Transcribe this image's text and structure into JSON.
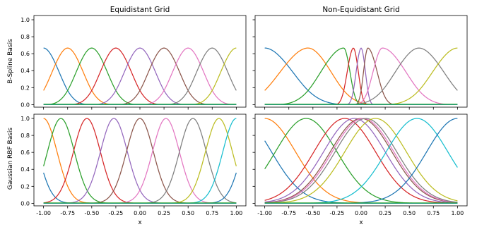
{
  "chart_data": [
    {
      "type": "line",
      "title": "Equidistant Grid",
      "xlabel": "",
      "ylabel": "B-Spline Basis",
      "xlim": [
        -1.1,
        1.1
      ],
      "ylim": [
        -0.03,
        1.05
      ],
      "xticks": [
        -1.0,
        -0.75,
        -0.5,
        -0.25,
        0.0,
        0.25,
        0.5,
        0.75,
        1.0
      ],
      "yticks": [
        "0.0",
        "0.2",
        "0.4",
        "0.6",
        "0.8",
        "1.0"
      ],
      "basis": "bspline",
      "centers": [
        -1.0,
        -0.75,
        -0.5,
        -0.25,
        0.0,
        0.25,
        0.5,
        0.75,
        1.0
      ]
    },
    {
      "type": "line",
      "title": "Non-Equidistant Grid",
      "xlabel": "",
      "ylabel": "",
      "xlim": [
        -1.1,
        1.1
      ],
      "ylim": [
        -0.03,
        1.05
      ],
      "xticks": [
        -1.0,
        -0.75,
        -0.5,
        -0.25,
        0.0,
        0.25,
        0.5,
        0.75,
        1.0
      ],
      "yticks": [
        "",
        "",
        "",
        "",
        "",
        ""
      ],
      "basis": "bspline",
      "centers": [
        -1.0,
        -0.55,
        -0.18,
        -0.08,
        0.0,
        0.07,
        0.22,
        0.6,
        1.0
      ]
    },
    {
      "type": "line",
      "title": "",
      "xlabel": "x",
      "ylabel": "Gaussian RBF Basis",
      "xlim": [
        -1.1,
        1.1
      ],
      "ylim": [
        -0.03,
        1.05
      ],
      "xticks": [
        "-1.00",
        "-0.75",
        "-0.50",
        "-0.25",
        "0.00",
        "0.25",
        "0.50",
        "0.75",
        "1.00"
      ],
      "yticks": [
        "0.0",
        "0.2",
        "0.4",
        "0.6",
        "0.8",
        "1.0"
      ],
      "basis": "gaussian",
      "centers": [
        -1.2,
        -1.0,
        -0.82,
        -0.55,
        -0.27,
        0.0,
        0.27,
        0.55,
        0.82,
        1.0,
        1.2
      ],
      "width": 0.14
    },
    {
      "type": "line",
      "title": "",
      "xlabel": "x",
      "ylabel": "",
      "xlim": [
        -1.1,
        1.1
      ],
      "ylim": [
        -0.03,
        1.05
      ],
      "xticks": [
        "-1.00",
        "-0.75",
        "-0.50",
        "-0.25",
        "0.00",
        "0.25",
        "0.50",
        "0.75",
        "1.00"
      ],
      "yticks": [
        "",
        "",
        "",
        "",
        "",
        ""
      ],
      "basis": "gaussian",
      "centers": [
        -1.25,
        -1.0,
        -0.57,
        -0.17,
        -0.07,
        0.0,
        0.02,
        0.05,
        0.15,
        0.58,
        1.0
      ],
      "width": 0.32
    }
  ],
  "colors": [
    "#1f77b4",
    "#ff7f0e",
    "#2ca02c",
    "#d62728",
    "#9467bd",
    "#8c564b",
    "#e377c2",
    "#7f7f7f",
    "#bcbd22",
    "#17becf",
    "#1f77b4"
  ]
}
